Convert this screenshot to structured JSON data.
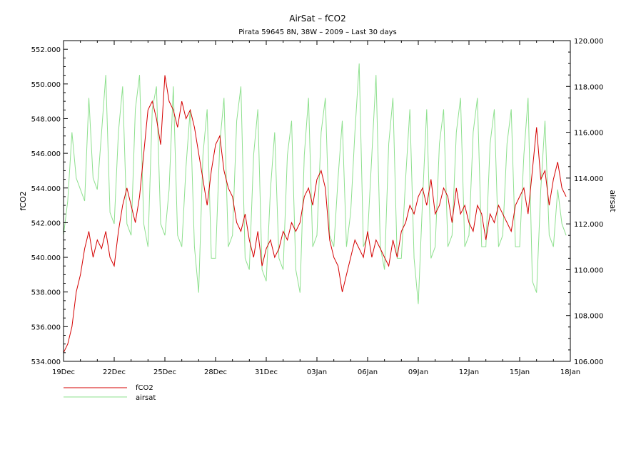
{
  "chart_data": {
    "type": "line",
    "title": "AirSat – fCO2",
    "subtitle": "Pirata 59645 8N, 38W – 2009 – Last 30 days",
    "xlabel": "",
    "ylabel_left": "fCO2",
    "ylabel_right": "airsat",
    "ylim_left": [
      534,
      552.5
    ],
    "ylim_right": [
      106,
      120
    ],
    "xlim_days": [
      0,
      30
    ],
    "x_ticks": [
      {
        "day": 0,
        "label": "19Dec"
      },
      {
        "day": 3,
        "label": "22Dec"
      },
      {
        "day": 6,
        "label": "25Dec"
      },
      {
        "day": 9,
        "label": "28Dec"
      },
      {
        "day": 12,
        "label": "31Dec"
      },
      {
        "day": 15,
        "label": "03Jan"
      },
      {
        "day": 18,
        "label": "06Jan"
      },
      {
        "day": 21,
        "label": "09Jan"
      },
      {
        "day": 24,
        "label": "12Jan"
      },
      {
        "day": 27,
        "label": "15Jan"
      },
      {
        "day": 30,
        "label": "18Jan"
      }
    ],
    "y_ticks_left": [
      "534.000",
      "536.000",
      "538.000",
      "540.000",
      "542.000",
      "544.000",
      "546.000",
      "548.000",
      "550.000",
      "552.000"
    ],
    "y_ticks_right": [
      "106.000",
      "108.000",
      "110.000",
      "112.000",
      "114.000",
      "116.000",
      "118.000",
      "120.000"
    ],
    "grid": false,
    "legend_position": "bottom-left",
    "series": [
      {
        "name": "fCO2",
        "axis": "left",
        "color": "#d40000",
        "x": [
          0,
          0.25,
          0.5,
          0.75,
          1,
          1.25,
          1.5,
          1.75,
          2,
          2.25,
          2.5,
          2.75,
          3,
          3.25,
          3.5,
          3.75,
          4,
          4.25,
          4.5,
          4.75,
          5,
          5.25,
          5.5,
          5.75,
          6,
          6.25,
          6.5,
          6.75,
          7,
          7.25,
          7.5,
          7.75,
          8,
          8.25,
          8.5,
          8.75,
          9,
          9.25,
          9.5,
          9.75,
          10,
          10.25,
          10.5,
          10.75,
          11,
          11.25,
          11.5,
          11.75,
          12,
          12.25,
          12.5,
          12.75,
          13,
          13.25,
          13.5,
          13.75,
          14,
          14.25,
          14.5,
          14.75,
          15,
          15.25,
          15.5,
          15.75,
          16,
          16.25,
          16.5,
          16.75,
          17,
          17.25,
          17.5,
          17.75,
          18,
          18.25,
          18.5,
          18.75,
          19,
          19.25,
          19.5,
          19.75,
          20,
          20.25,
          20.5,
          20.75,
          21,
          21.25,
          21.5,
          21.75,
          22,
          22.25,
          22.5,
          22.75,
          23,
          23.25,
          23.5,
          23.75,
          24,
          24.25,
          24.5,
          24.75,
          25,
          25.25,
          25.5,
          25.75,
          26,
          26.25,
          26.5,
          26.75,
          27,
          27.25,
          27.5,
          27.75,
          28,
          28.25,
          28.5,
          28.75,
          29,
          29.25,
          29.5,
          29.75
        ],
        "values": [
          534.5,
          535.0,
          536.0,
          538.0,
          539.0,
          540.5,
          541.5,
          540.0,
          541.0,
          540.5,
          541.5,
          540.0,
          539.5,
          541.5,
          543.0,
          544.0,
          543.0,
          542.0,
          543.5,
          546.0,
          548.5,
          549.0,
          548.0,
          546.5,
          550.5,
          549.0,
          548.5,
          547.5,
          549.0,
          548.0,
          548.5,
          547.5,
          546.0,
          544.5,
          543.0,
          545.0,
          546.5,
          547.0,
          545.0,
          544.0,
          543.5,
          542.0,
          541.5,
          542.5,
          541.0,
          540.0,
          541.5,
          539.5,
          540.5,
          541.0,
          540.0,
          540.5,
          541.5,
          541.0,
          542.0,
          541.5,
          542.0,
          543.5,
          544.0,
          543.0,
          544.5,
          545.0,
          544.0,
          541.0,
          540.0,
          539.5,
          538.0,
          539.0,
          540.0,
          541.0,
          540.5,
          540.0,
          541.5,
          540.0,
          541.0,
          540.5,
          540.0,
          539.5,
          541.0,
          540.0,
          541.5,
          542.0,
          543.0,
          542.5,
          543.5,
          544.0,
          543.0,
          544.5,
          542.5,
          543.0,
          544.0,
          543.5,
          542.0,
          544.0,
          542.5,
          543.0,
          542.0,
          541.5,
          543.0,
          542.5,
          541.0,
          542.5,
          542.0,
          543.0,
          542.5,
          542.0,
          541.5,
          543.0,
          543.5,
          544.0,
          542.5,
          545.0,
          547.5,
          544.5,
          545.0,
          543.0,
          544.5,
          545.5,
          544.0,
          543.5
        ]
      },
      {
        "name": "airsat",
        "axis": "right",
        "color": "#8ee08e",
        "x": [
          0,
          0.25,
          0.5,
          0.75,
          1,
          1.25,
          1.5,
          1.75,
          2,
          2.25,
          2.5,
          2.75,
          3,
          3.25,
          3.5,
          3.75,
          4,
          4.25,
          4.5,
          4.75,
          5,
          5.25,
          5.5,
          5.75,
          6,
          6.25,
          6.5,
          6.75,
          7,
          7.25,
          7.5,
          7.75,
          8,
          8.25,
          8.5,
          8.75,
          9,
          9.25,
          9.5,
          9.75,
          10,
          10.25,
          10.5,
          10.75,
          11,
          11.25,
          11.5,
          11.75,
          12,
          12.25,
          12.5,
          12.75,
          13,
          13.25,
          13.5,
          13.75,
          14,
          14.25,
          14.5,
          14.75,
          15,
          15.25,
          15.5,
          15.75,
          16,
          16.25,
          16.5,
          16.75,
          17,
          17.25,
          17.5,
          17.75,
          18,
          18.25,
          18.5,
          18.75,
          19,
          19.25,
          19.5,
          19.75,
          20,
          20.25,
          20.5,
          20.75,
          21,
          21.25,
          21.5,
          21.75,
          22,
          22.25,
          22.5,
          22.75,
          23,
          23.25,
          23.5,
          23.75,
          24,
          24.25,
          24.5,
          24.75,
          25,
          25.25,
          25.5,
          25.75,
          26,
          26.25,
          26.5,
          26.75,
          27,
          27.25,
          27.5,
          27.75,
          28,
          28.25,
          28.5,
          28.75,
          29,
          29.25,
          29.5,
          29.75
        ],
        "values": [
          111.5,
          113.0,
          116.0,
          114.0,
          113.5,
          113.0,
          117.5,
          114.0,
          113.5,
          116.0,
          118.5,
          112.5,
          112.0,
          116.0,
          118.0,
          112.0,
          111.5,
          117.0,
          118.5,
          112.0,
          111.0,
          117.0,
          118.0,
          112.0,
          111.5,
          113.5,
          118.0,
          111.5,
          111.0,
          114.5,
          117.0,
          111.0,
          109.0,
          115.0,
          117.0,
          110.5,
          110.5,
          115.5,
          117.5,
          111.0,
          111.5,
          116.5,
          118.0,
          110.5,
          110.0,
          115.0,
          117.0,
          110.0,
          109.5,
          113.5,
          116.0,
          110.5,
          110.0,
          115.0,
          116.5,
          110.0,
          109.0,
          115.0,
          117.5,
          111.0,
          111.5,
          116.0,
          117.5,
          111.5,
          111.0,
          114.0,
          116.5,
          111.0,
          112.5,
          116.0,
          119.0,
          111.0,
          111.5,
          115.0,
          118.5,
          111.0,
          110.0,
          115.5,
          117.5,
          110.5,
          110.5,
          114.0,
          117.0,
          110.5,
          108.5,
          113.0,
          117.0,
          110.5,
          111.0,
          115.5,
          117.0,
          111.0,
          111.5,
          116.0,
          117.5,
          111.0,
          111.5,
          116.0,
          117.5,
          111.0,
          111.0,
          115.5,
          117.0,
          111.0,
          111.5,
          115.5,
          117.0,
          111.0,
          111.0,
          115.0,
          117.5,
          109.5,
          109.0,
          113.5,
          116.5,
          111.5,
          111.0,
          113.5,
          112.0,
          111.5
        ]
      }
    ]
  }
}
